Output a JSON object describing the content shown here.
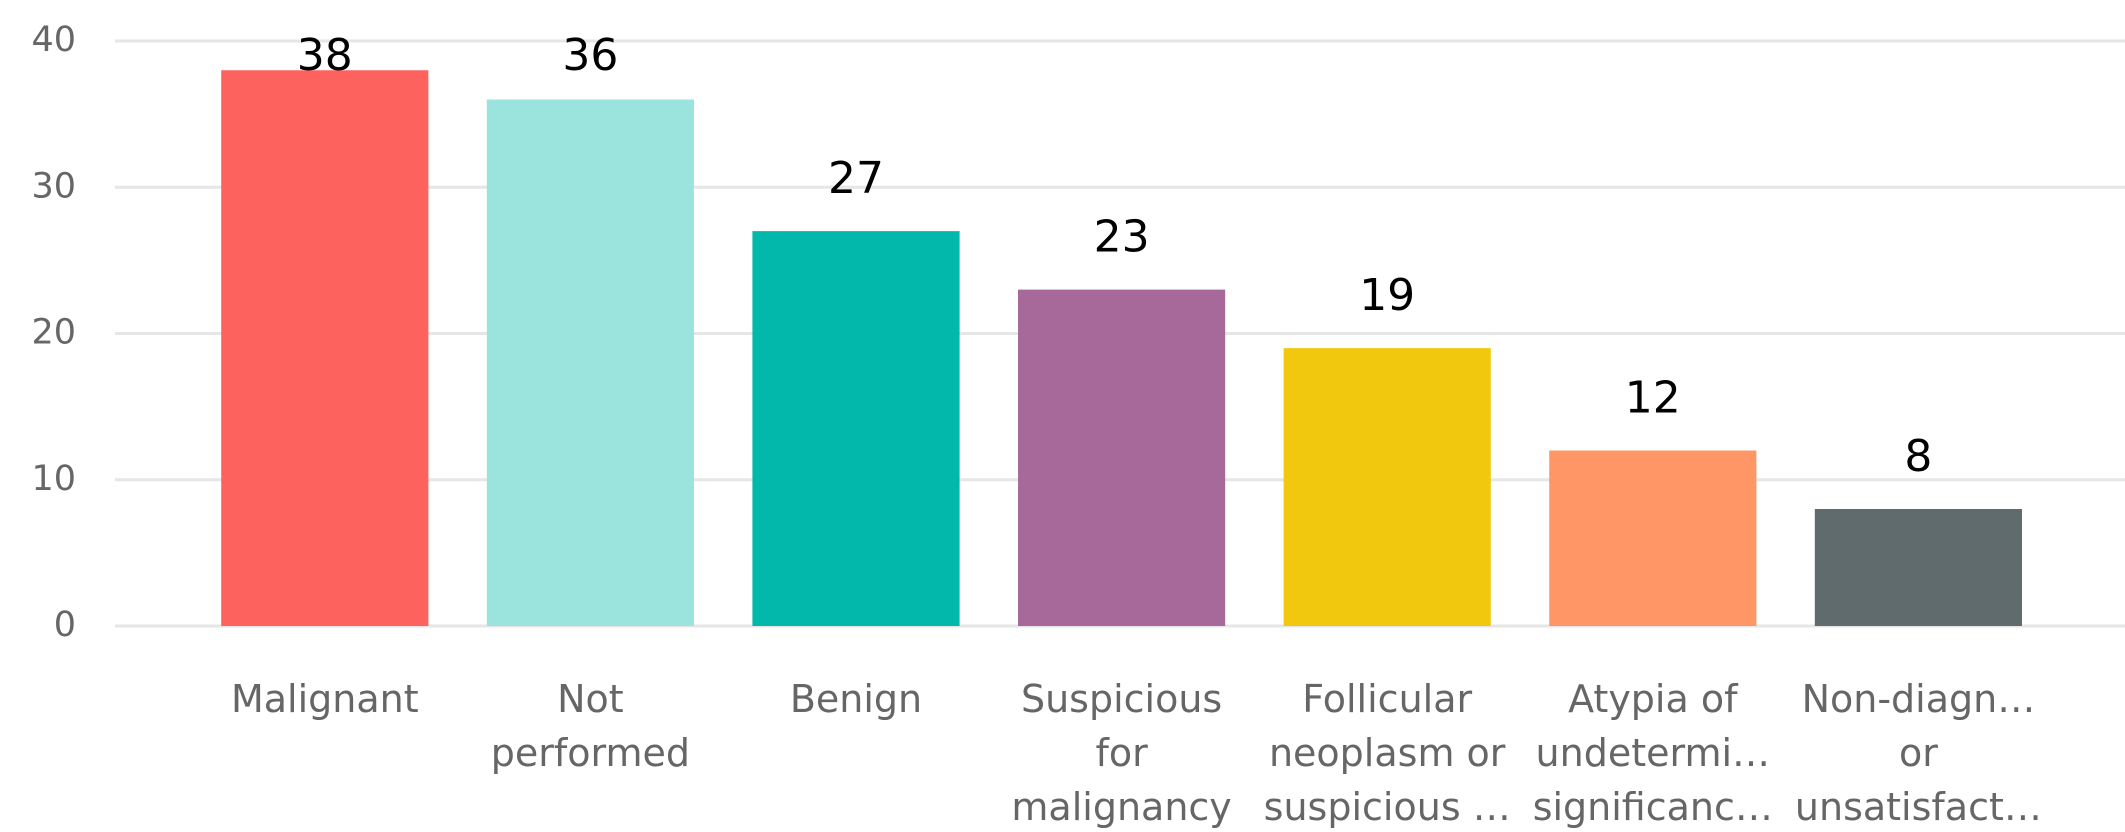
{
  "chart_data": {
    "type": "bar",
    "categories": [
      [
        "Malignant"
      ],
      [
        "Not",
        "performed"
      ],
      [
        "Benign"
      ],
      [
        "Suspicious",
        "for",
        "malignancy"
      ],
      [
        "Follicular",
        "neoplasm or",
        "suspicious …"
      ],
      [
        "Atypia of",
        "undetermi…",
        "significanc…"
      ],
      [
        "Non-diagn…",
        "or",
        "unsatisfact…"
      ]
    ],
    "values": [
      38,
      36,
      27,
      23,
      19,
      12,
      8
    ],
    "colors": [
      "#fd625e",
      "#9ae4dd",
      "#01b8aa",
      "#a66999",
      "#f2c80f",
      "#fe9666",
      "#5f6b6d"
    ],
    "ylim": [
      0,
      40
    ],
    "yticks": [
      0,
      10,
      20,
      30,
      40
    ],
    "grid": true
  }
}
